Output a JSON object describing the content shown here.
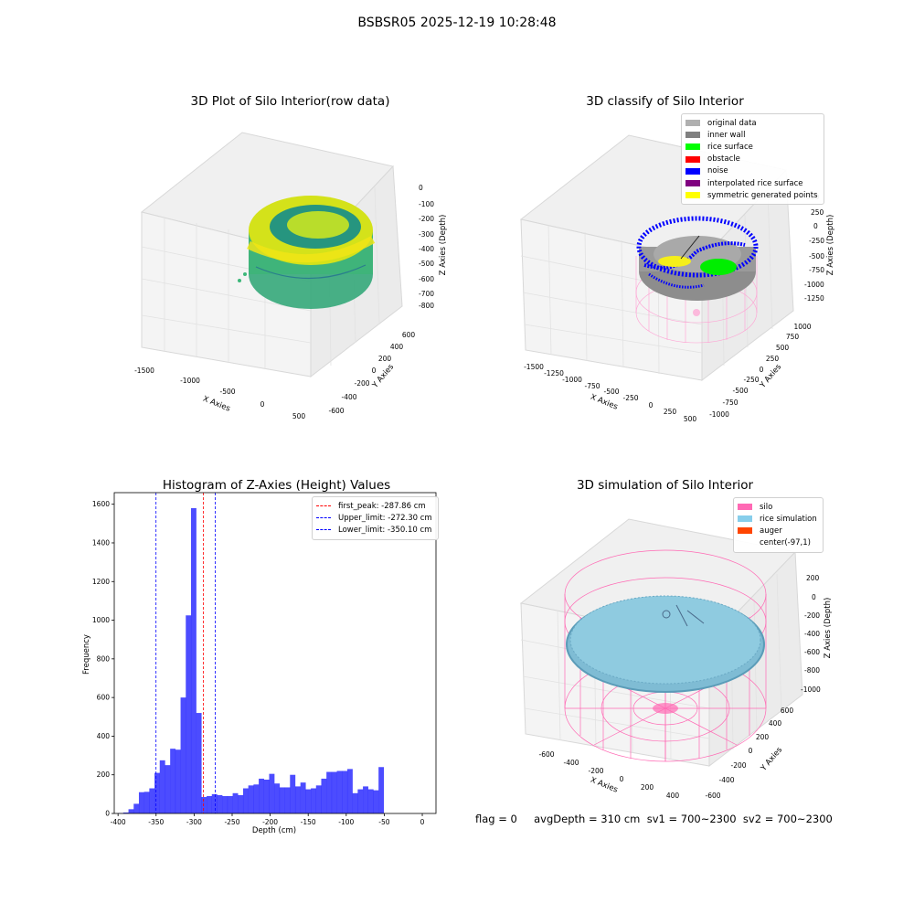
{
  "figure": {
    "suptitle": "BSBSR05 2025-12-19 10:28:48"
  },
  "panel1": {
    "title": "3D Plot of Silo Interior(row data)",
    "xlabel": "X Axies",
    "ylabel": "Y Axies",
    "zlabel": "Z Axies (Depth)",
    "xticks": [
      "-1500",
      "-1000",
      "-500",
      "0",
      "500"
    ],
    "yticks": [
      "-600",
      "-400",
      "-200",
      "0",
      "200",
      "400",
      "600"
    ],
    "zticks": [
      "0",
      "-100",
      "-200",
      "-300",
      "-400",
      "-500",
      "-600",
      "-700",
      "-800"
    ]
  },
  "panel2": {
    "title": "3D classify of Silo Interior",
    "xlabel": "X Axies",
    "ylabel": "Y Axies",
    "zlabel": "Z Axies (Depth)",
    "xticks": [
      "-1500",
      "-1250",
      "-1000",
      "-750",
      "-500",
      "-250",
      "0",
      "250",
      "500"
    ],
    "yticks": [
      "-1000",
      "-750",
      "-500",
      "-250",
      "0",
      "250",
      "500",
      "750",
      "1000"
    ],
    "zticks": [
      "500",
      "250",
      "0",
      "-250",
      "-500",
      "-750",
      "-1000",
      "-1250"
    ],
    "legend": [
      {
        "label": "original data",
        "color": "#b0b0b0"
      },
      {
        "label": "inner wall",
        "color": "#808080"
      },
      {
        "label": "rice surface",
        "color": "#00ff00"
      },
      {
        "label": "obstacle",
        "color": "#ff0000"
      },
      {
        "label": "noise",
        "color": "#0000ff"
      },
      {
        "label": "interpolated rice surface",
        "color": "#800080"
      },
      {
        "label": "symmetric generated points",
        "color": "#ffff00"
      }
    ]
  },
  "panel4": {
    "title": "3D simulation of Silo Interior",
    "xlabel": "X Axies",
    "ylabel": "Y Axies",
    "zlabel": "Z Axies (Depth)",
    "xticks": [
      "-600",
      "-400",
      "-200",
      "0",
      "200",
      "400"
    ],
    "yticks": [
      "-600",
      "-400",
      "-200",
      "0",
      "200",
      "400",
      "600"
    ],
    "zticks": [
      "200",
      "0",
      "-200",
      "-400",
      "-600",
      "-800",
      "-1000"
    ],
    "legend": [
      {
        "label": "silo",
        "color": "#ff69b4"
      },
      {
        "label": "rice simulation",
        "color": "#87ceeb"
      },
      {
        "label": "auger",
        "color": "#ff4500"
      },
      {
        "label": "center(-97,1)",
        "color": ""
      }
    ]
  },
  "footer": {
    "text": "flag = 0     avgDepth = 310 cm  sv1 = 700~2300  sv2 = 700~2300"
  },
  "chart_data": [
    {
      "type": "bar",
      "title": "Histogram of Z-Axies (Height) Values",
      "xlabel": "Depth (cm)",
      "ylabel": "Frequency",
      "xlim": [
        -405,
        18
      ],
      "ylim": [
        0,
        1660
      ],
      "xticks": [
        -400,
        -350,
        -300,
        -250,
        -200,
        -150,
        -100,
        -50,
        0
      ],
      "yticks": [
        0,
        200,
        400,
        600,
        800,
        1000,
        1200,
        1400,
        1600
      ],
      "bar_color": "#0000ff",
      "bin_start": -400,
      "bin_width": 6.85,
      "values": [
        2,
        5,
        22,
        50,
        110,
        112,
        130,
        210,
        275,
        250,
        335,
        330,
        600,
        1025,
        1580,
        520,
        85,
        90,
        100,
        95,
        90,
        90,
        105,
        95,
        130,
        145,
        150,
        180,
        175,
        205,
        155,
        135,
        135,
        200,
        140,
        160,
        125,
        130,
        145,
        180,
        215,
        215,
        220,
        220,
        230,
        105,
        125,
        140,
        125,
        120,
        240
      ],
      "vlines": [
        {
          "x": -287.86,
          "label": "first_peak: -287.86 cm",
          "color": "#ff0000"
        },
        {
          "x": -272.3,
          "label": "Upper_limit: -272.30 cm",
          "color": "#0000ff"
        },
        {
          "x": -350.1,
          "label": "Lower_limit: -350.10 cm",
          "color": "#0000ff"
        }
      ]
    }
  ]
}
